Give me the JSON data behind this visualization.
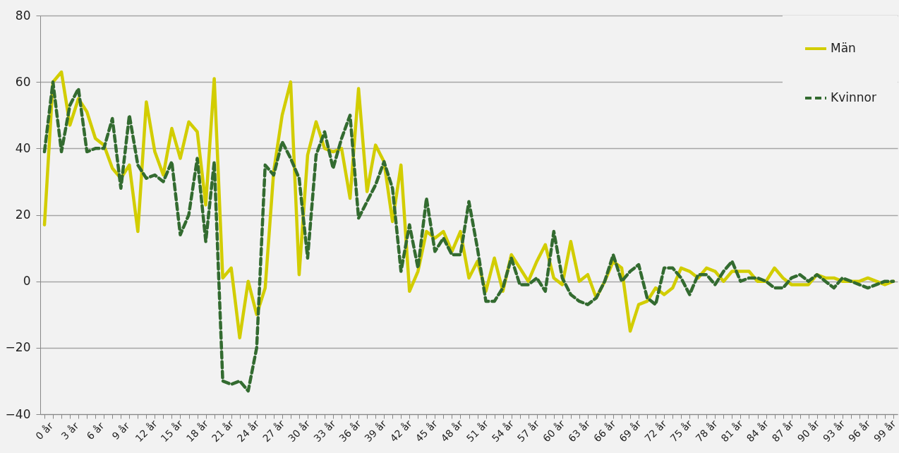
{
  "chart_data": {
    "type": "line",
    "categories": [
      "0 år",
      null,
      null,
      "3 år",
      null,
      null,
      "6 år",
      null,
      null,
      "9 år",
      null,
      null,
      "12 år",
      null,
      null,
      "15 år",
      null,
      null,
      "18 år",
      null,
      null,
      "21 år",
      null,
      null,
      "24 år",
      null,
      null,
      "27 år",
      null,
      null,
      "30 år",
      null,
      null,
      "33 år",
      null,
      null,
      "36 år",
      null,
      null,
      "39 år",
      null,
      null,
      "42 år",
      null,
      null,
      "45 år",
      null,
      null,
      "48 år",
      null,
      null,
      "51 år",
      null,
      null,
      "54 år",
      null,
      null,
      "57 år",
      null,
      null,
      "60 år",
      null,
      null,
      "63 år",
      null,
      null,
      "66 år",
      null,
      null,
      "69 år",
      null,
      null,
      "72 år",
      null,
      null,
      "75 år",
      null,
      null,
      "78 år",
      null,
      null,
      "81 år",
      null,
      null,
      "84 år",
      null,
      null,
      "87 år",
      null,
      null,
      "90 år",
      null,
      null,
      "93 år",
      null,
      null,
      "96 år",
      null,
      null,
      "99 år",
      null
    ],
    "series": [
      {
        "name": "Män",
        "color": "#d2cd00",
        "line_style": "solid",
        "values": [
          17,
          60,
          63,
          47,
          55,
          51,
          43,
          41,
          34,
          31,
          35,
          15,
          54,
          39,
          32,
          46,
          37,
          48,
          45,
          23,
          61,
          1,
          4,
          -17,
          0,
          -10,
          -2,
          33,
          50,
          60,
          2,
          38,
          48,
          40,
          39,
          40,
          25,
          58,
          27,
          41,
          36,
          18,
          35,
          -3,
          3,
          15,
          13,
          15,
          9,
          15,
          1,
          6,
          -3,
          7,
          -3,
          8,
          4,
          0,
          6,
          11,
          1,
          -1,
          12,
          0,
          2,
          -5,
          0,
          6,
          4,
          -15,
          -7,
          -6,
          -2,
          -4,
          -2,
          4,
          3,
          1,
          4,
          3,
          0,
          3,
          3,
          3,
          0,
          0,
          4,
          1,
          -1,
          -1,
          -1,
          2,
          1,
          1,
          0,
          0,
          0,
          1,
          0,
          -1,
          0
        ]
      },
      {
        "name": "Kvinnor",
        "color": "#336b30",
        "line_style": "dashed",
        "values": [
          39,
          60,
          39,
          53,
          58,
          39,
          40,
          40,
          49,
          28,
          50,
          35,
          31,
          32,
          30,
          36,
          14,
          20,
          37,
          12,
          36,
          -30,
          -31,
          -30,
          -33,
          -20,
          35,
          32,
          42,
          37,
          31,
          7,
          38,
          45,
          34,
          43,
          50,
          19,
          24,
          29,
          36,
          28,
          3,
          17,
          4,
          25,
          9,
          13,
          8,
          8,
          24,
          10,
          -6,
          -6,
          -2,
          7,
          -1,
          -1,
          1,
          -3,
          15,
          1,
          -4,
          -6,
          -7,
          -5,
          0,
          8,
          0,
          3,
          5,
          -5,
          -7,
          4,
          4,
          1,
          -4,
          2,
          2,
          -1,
          3,
          6,
          0,
          1,
          1,
          0,
          -2,
          -2,
          1,
          2,
          0,
          2,
          0,
          -2,
          1,
          0,
          -1,
          -2,
          -1,
          0,
          0
        ]
      }
    ],
    "ylim": [
      -40,
      80
    ],
    "yticks": [
      -40,
      -20,
      0,
      20,
      40,
      60,
      80
    ],
    "grid": "y",
    "legend": "top right"
  }
}
